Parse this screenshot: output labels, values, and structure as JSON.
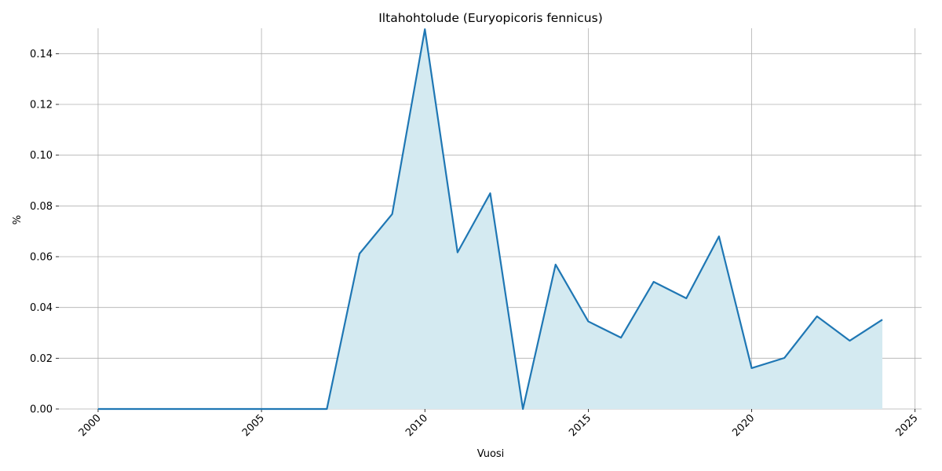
{
  "chart_data": {
    "type": "area_line",
    "title": "Iltahohtolude (Euryopicoris fennicus)",
    "x_label": "Vuosi",
    "y_label": "%",
    "x": [
      2000,
      2001,
      2002,
      2003,
      2004,
      2005,
      2006,
      2007,
      2008,
      2009,
      2010,
      2011,
      2012,
      2013,
      2014,
      2015,
      2016,
      2017,
      2018,
      2019,
      2020,
      2021,
      2022,
      2023,
      2024
    ],
    "series": [
      {
        "color": "#1f77b4",
        "fill": "#d4eaf1",
        "values": [
          0,
          0,
          0,
          0,
          0,
          0,
          0,
          0,
          0.0612,
          0.0768,
          0.1496,
          0.0617,
          0.085,
          0,
          0.0569,
          0.0345,
          0.0281,
          0.0501,
          0.0436,
          0.068,
          0.0161,
          0.0201,
          0.0365,
          0.0269,
          0.0352
        ]
      }
    ],
    "xlim": [
      1998.8,
      2025.2
    ],
    "xticks": [
      2000,
      2005,
      2010,
      2015,
      2020,
      2025
    ],
    "ylim": [
      0,
      0.15
    ],
    "yticks": [
      {
        "value": 0,
        "label": "0.00"
      },
      {
        "value": 0.02,
        "label": "0.02"
      },
      {
        "value": 0.04,
        "label": "0.04"
      },
      {
        "value": 0.06,
        "label": "0.06"
      },
      {
        "value": 0.08,
        "label": "0.08"
      },
      {
        "value": 0.1,
        "label": "0.10"
      },
      {
        "value": 0.12,
        "label": "0.12"
      },
      {
        "value": 0.14,
        "label": "0.14"
      }
    ],
    "grid": true
  }
}
